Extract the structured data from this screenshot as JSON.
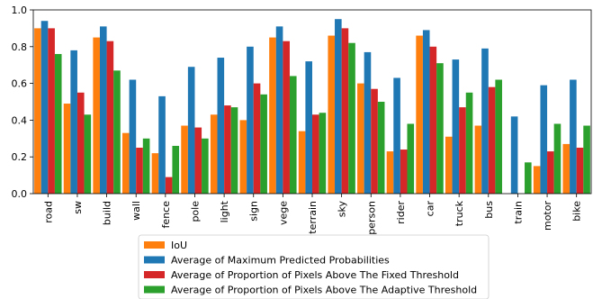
{
  "chart_data": {
    "type": "bar",
    "categories": [
      "road",
      "sw",
      "build",
      "wall",
      "fence",
      "pole",
      "light",
      "sign",
      "vege",
      "terrain",
      "sky",
      "person",
      "rider",
      "car",
      "truck",
      "bus",
      "train",
      "motor",
      "bike"
    ],
    "series": [
      {
        "name": "IoU",
        "color": "#ff7f0e",
        "values": [
          0.9,
          0.49,
          0.85,
          0.33,
          0.22,
          0.37,
          0.43,
          0.4,
          0.85,
          0.34,
          0.86,
          0.6,
          0.23,
          0.86,
          0.31,
          0.37,
          0.0,
          0.15,
          0.27
        ]
      },
      {
        "name": "Average of Maximum Predicted Probabilities",
        "color": "#1f77b4",
        "values": [
          0.94,
          0.78,
          0.91,
          0.62,
          0.53,
          0.69,
          0.74,
          0.8,
          0.91,
          0.72,
          0.95,
          0.77,
          0.63,
          0.89,
          0.73,
          0.79,
          0.42,
          0.59,
          0.62
        ]
      },
      {
        "name": "Average of Proportion of Pixels Above The Fixed Threshold",
        "color": "#d62728",
        "values": [
          0.9,
          0.55,
          0.83,
          0.25,
          0.09,
          0.36,
          0.48,
          0.6,
          0.83,
          0.43,
          0.9,
          0.57,
          0.24,
          0.8,
          0.47,
          0.58,
          0.0,
          0.23,
          0.25
        ]
      },
      {
        "name": "Average of Proportion of Pixels Above The Adaptive Threshold",
        "color": "#2ca02c",
        "values": [
          0.76,
          0.43,
          0.67,
          0.3,
          0.26,
          0.3,
          0.47,
          0.54,
          0.64,
          0.44,
          0.82,
          0.5,
          0.38,
          0.71,
          0.55,
          0.62,
          0.17,
          0.38,
          0.37
        ]
      }
    ],
    "ylim": [
      0,
      1.0
    ],
    "yticks": [
      "0.0",
      "0.2",
      "0.4",
      "0.6",
      "0.8",
      "1.0"
    ],
    "xlabel": "",
    "ylabel": "",
    "title": "",
    "legend_placement": "bottom-center",
    "grid": false
  }
}
